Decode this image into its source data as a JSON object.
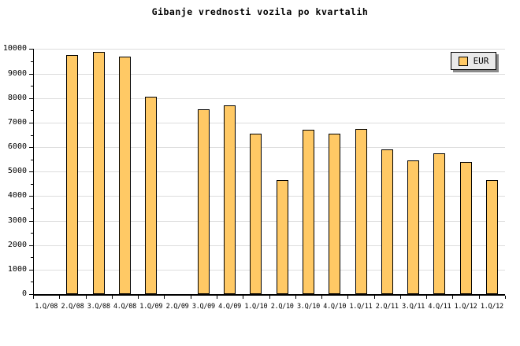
{
  "title": "Gibanje vrednosti vozila po kvartalih",
  "legend": {
    "label": "EUR"
  },
  "colors": {
    "background": "#FFFFFF",
    "bar_fill": "#FFC965",
    "bar_border": "#000000",
    "gridline": "#DDDDDD",
    "axis": "#000000",
    "legend_bg": "#E9E9E9",
    "legend_shadow": "#8A8A8A",
    "text": "#000000"
  },
  "chart_data": {
    "type": "bar",
    "title": "Gibanje vrednosti vozila po kvartalih",
    "categories": [
      "1.Q/08",
      "2.Q/08",
      "3.Q/08",
      "4.Q/08",
      "1.Q/09",
      "2.Q/09",
      "3.Q/09",
      "4.Q/09",
      "1.Q/10",
      "2.Q/10",
      "3.Q/10",
      "4.Q/10",
      "1.Q/11",
      "2.Q/11",
      "3.Q/11",
      "4.Q/11",
      "1.Q/12",
      "1.Q/12"
    ],
    "series": [
      {
        "name": "EUR",
        "values": [
          null,
          9750,
          9900,
          9700,
          8050,
          null,
          7550,
          7700,
          6550,
          4650,
          6700,
          6550,
          6750,
          5900,
          5450,
          5750,
          5400,
          4650
        ]
      }
    ],
    "xlabel": "",
    "ylabel": "",
    "ylim": [
      0,
      10000
    ],
    "y_major_tick_step": 1000,
    "y_minor_tick_step": 500,
    "y_tick_labels": [
      "0",
      "1000",
      "2000",
      "3000",
      "4000",
      "5000",
      "6000",
      "7000",
      "8000",
      "9000",
      "10000"
    ],
    "grid": "horizontal-major",
    "legend_position": "top-right",
    "legend_entries": [
      "EUR"
    ]
  }
}
